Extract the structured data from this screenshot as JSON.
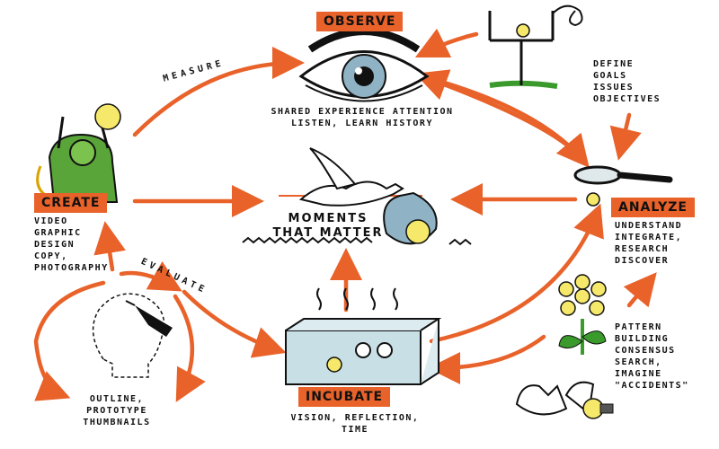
{
  "stages": {
    "observe": "OBSERVE",
    "analyze": "ANALYZE",
    "incubate": "INCUBATE",
    "create": "CREATE"
  },
  "labels": {
    "observe_notes": "SHARED EXPERIENCE ATTENTION\nLISTEN, LEARN HISTORY",
    "define_notes": "DEFINE\nGOALS\nISSUES\nOBJECTIVES",
    "analyze_notes": "UNDERSTAND\nINTEGRATE,\nRESEARCH\nDISCOVER",
    "pattern_notes": "PATTERN\nBUILDING\nCONSENSUS\nSEARCH,\nIMAGINE\n\"ACCIDENTS\"",
    "incubate_notes": "VISION, REFLECTION,\nTIME",
    "outline_notes": "OUTLINE,\nPROTOTYPE\nTHUMBNAILS",
    "create_notes": "VIDEO\nGRAPHIC\nDESIGN\nCOPY,\nPHOTOGRAPHY",
    "measure": "MEASURE",
    "evaluate": "EVALUATE",
    "center_title": "MOMENTS\nTHAT MATTER"
  },
  "colors": {
    "accent": "#e8622a",
    "ink": "#111111",
    "bulb": "#f5e86a",
    "eye": "#8fb3c4",
    "grass": "#3a9a2c",
    "tank": "#c9dfe6"
  }
}
